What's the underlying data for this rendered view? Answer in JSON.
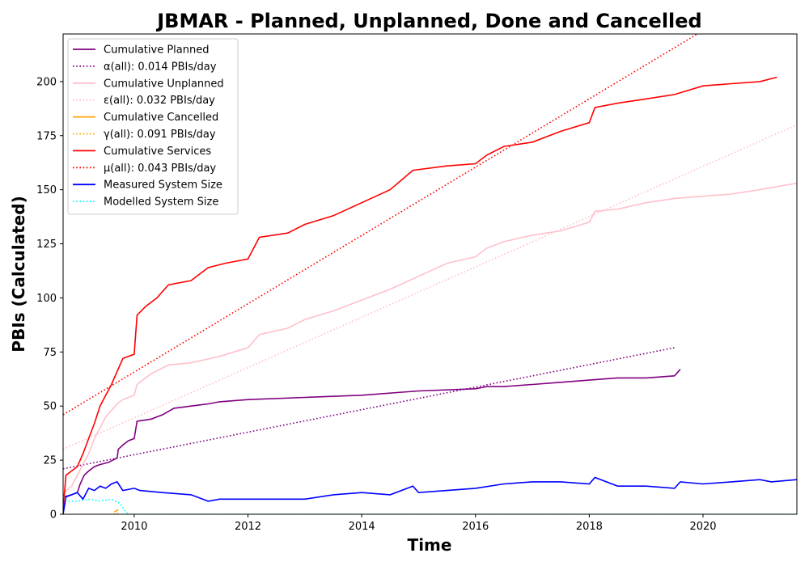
{
  "chart_data": {
    "type": "line",
    "title": "JBMAR - Planned, Unplanned, Done  and Cancelled",
    "xlabel": "Time",
    "ylabel": "PBIs (Calculated)",
    "xlim": [
      2008.75,
      2021.65
    ],
    "ylim": [
      0,
      222
    ],
    "xticks": [
      2010,
      2012,
      2014,
      2016,
      2018,
      2020
    ],
    "yticks": [
      0,
      25,
      50,
      75,
      100,
      125,
      150,
      175,
      200
    ],
    "legend": "top-left",
    "grid": false,
    "series": [
      {
        "name": "Cumulative Planned",
        "color": "#800080",
        "style": "solid",
        "x": [
          2008.75,
          2008.76,
          2008.9,
          2009.0,
          2009.05,
          2009.12,
          2009.2,
          2009.3,
          2009.4,
          2009.55,
          2009.7,
          2009.72,
          2009.8,
          2009.9,
          2010.0,
          2010.05,
          2010.3,
          2010.5,
          2010.7,
          2011.0,
          2011.3,
          2011.5,
          2012.0,
          2013.0,
          2014.0,
          2015.0,
          2016.0,
          2016.2,
          2016.5,
          2017.0,
          2017.5,
          2018.0,
          2018.5,
          2019.0,
          2019.5,
          2019.6
        ],
        "y": [
          3,
          8,
          9,
          10,
          14,
          18,
          20,
          22,
          23,
          24,
          26,
          30,
          32,
          34,
          35,
          43,
          44,
          46,
          49,
          50,
          51,
          52,
          53,
          54,
          55,
          57,
          58,
          59,
          59,
          60,
          61,
          62,
          63,
          63,
          64,
          67
        ]
      },
      {
        "name": "α(all): 0.014 PBIs/day",
        "color": "#800080",
        "style": "dotted",
        "x": [
          2008.75,
          2019.5
        ],
        "y": [
          21,
          77
        ]
      },
      {
        "name": "Cumulative Unplanned",
        "color": "#ffc0cb",
        "style": "solid",
        "x": [
          2008.75,
          2008.76,
          2008.9,
          2009.0,
          2009.1,
          2009.2,
          2009.3,
          2009.4,
          2009.5,
          2009.6,
          2009.7,
          2009.8,
          2009.9,
          2010.0,
          2010.05,
          2010.3,
          2010.6,
          2011.0,
          2011.5,
          2012.0,
          2012.2,
          2012.7,
          2013.0,
          2013.5,
          2014.0,
          2014.5,
          2015.0,
          2015.5,
          2016.0,
          2016.2,
          2016.5,
          2017.0,
          2017.5,
          2018.0,
          2018.1,
          2018.5,
          2019.0,
          2019.5,
          2020.0,
          2020.5,
          2021.0,
          2021.65
        ],
        "y": [
          5,
          10,
          13,
          18,
          23,
          28,
          35,
          40,
          45,
          48,
          51,
          53,
          54,
          55,
          60,
          65,
          69,
          70,
          73,
          77,
          83,
          86,
          90,
          94,
          99,
          104,
          110,
          116,
          119,
          123,
          126,
          129,
          131,
          135,
          140,
          141,
          144,
          146,
          147,
          148,
          150,
          153
        ]
      },
      {
        "name": "ε(all): 0.032 PBIs/day",
        "color": "#ffc0cb",
        "style": "dotted",
        "x": [
          2008.75,
          2021.65
        ],
        "y": [
          30,
          180
        ]
      },
      {
        "name": "Cumulative Cancelled",
        "color": "#ffa500",
        "style": "solid",
        "x": [
          2009.65,
          2009.72
        ],
        "y": [
          1,
          2
        ]
      },
      {
        "name": "γ(all): 0.091 PBIs/day",
        "color": "#ffa500",
        "style": "dotted",
        "x": [
          2009.65,
          2009.72
        ],
        "y": [
          0,
          0.5
        ]
      },
      {
        "name": "Cumulative Services",
        "color": "#ff0000",
        "style": "solid",
        "x": [
          2008.75,
          2008.8,
          2008.9,
          2009.0,
          2009.1,
          2009.2,
          2009.3,
          2009.4,
          2009.5,
          2009.6,
          2009.7,
          2009.8,
          2010.0,
          2010.05,
          2010.2,
          2010.4,
          2010.6,
          2011.0,
          2011.3,
          2011.6,
          2012.0,
          2012.2,
          2012.7,
          2013.0,
          2013.5,
          2014.0,
          2014.5,
          2014.9,
          2015.5,
          2016.0,
          2016.2,
          2016.5,
          2017.0,
          2017.5,
          2018.0,
          2018.1,
          2018.5,
          2019.0,
          2019.5,
          2020.0,
          2020.5,
          2021.0,
          2021.3
        ],
        "y": [
          2,
          18,
          20,
          22,
          28,
          35,
          42,
          50,
          55,
          60,
          66,
          72,
          74,
          92,
          96,
          100,
          106,
          108,
          114,
          116,
          118,
          128,
          130,
          134,
          138,
          144,
          150,
          159,
          161,
          162,
          166,
          170,
          172,
          177,
          181,
          188,
          190,
          192,
          194,
          198,
          199,
          200,
          202
        ]
      },
      {
        "name": "μ(all): 0.043 PBIs/day",
        "color": "#ff0000",
        "style": "dotted",
        "x": [
          2008.75,
          2019.9
        ],
        "y": [
          46,
          222
        ]
      },
      {
        "name": "Measured System Size",
        "color": "#0000ff",
        "style": "solid",
        "x": [
          2008.75,
          2008.8,
          2008.9,
          2009.0,
          2009.1,
          2009.2,
          2009.3,
          2009.4,
          2009.5,
          2009.6,
          2009.7,
          2009.8,
          2010.0,
          2010.1,
          2010.5,
          2011.0,
          2011.3,
          2011.5,
          2012.0,
          2012.5,
          2013.0,
          2013.5,
          2014.0,
          2014.5,
          2014.9,
          2015.0,
          2015.5,
          2016.0,
          2016.5,
          2017.0,
          2017.5,
          2018.0,
          2018.1,
          2018.5,
          2019.0,
          2019.5,
          2019.6,
          2020.0,
          2020.5,
          2021.0,
          2021.2,
          2021.65
        ],
        "y": [
          0,
          8,
          9,
          10,
          7,
          12,
          11,
          13,
          12,
          14,
          15,
          11,
          12,
          11,
          10,
          9,
          6,
          7,
          7,
          7,
          7,
          9,
          10,
          9,
          13,
          10,
          11,
          12,
          14,
          15,
          15,
          14,
          17,
          13,
          13,
          12,
          15,
          14,
          15,
          16,
          15,
          16
        ]
      },
      {
        "name": "Modelled System Size",
        "color": "#00ffff",
        "style": "dotted",
        "x": [
          2008.75,
          2008.85,
          2009.0,
          2009.2,
          2009.4,
          2009.6,
          2009.75,
          2009.85,
          2009.9,
          2010.0,
          2015.0,
          2021.65
        ],
        "y": [
          8,
          6,
          6,
          7,
          6,
          7,
          5,
          1,
          0,
          0,
          0,
          0
        ]
      }
    ]
  }
}
